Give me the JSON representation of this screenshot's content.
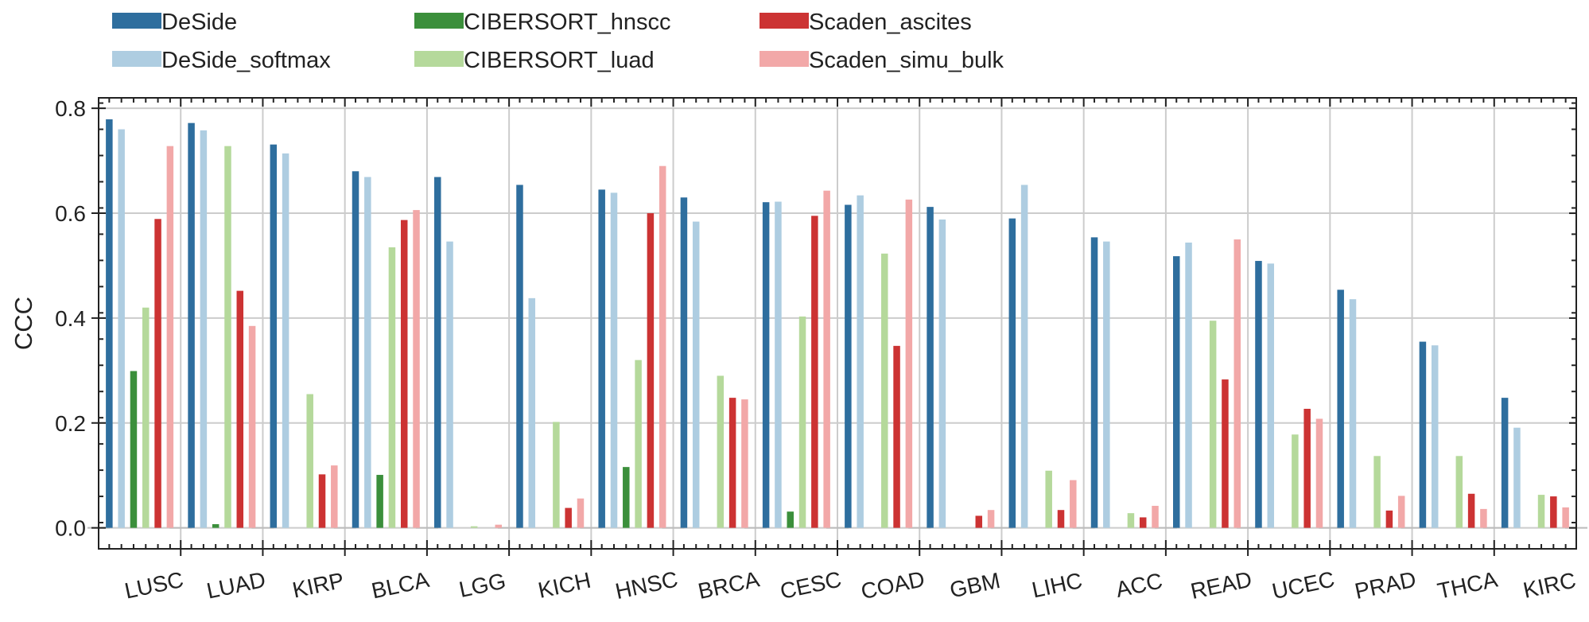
{
  "chart_data": {
    "type": "bar",
    "ylabel": "CCC",
    "xlabel": "",
    "ylim": [
      -0.04,
      0.82
    ],
    "yticks": [
      0.0,
      0.2,
      0.4,
      0.6,
      0.8
    ],
    "ytick_labels": [
      "0.0",
      "0.2",
      "0.4",
      "0.6",
      "0.8"
    ],
    "grid": true,
    "legend_position": "top",
    "categories": [
      "LUSC",
      "LUAD",
      "KIRP",
      "BLCA",
      "LGG",
      "KICH",
      "HNSC",
      "BRCA",
      "CESC",
      "COAD",
      "GBM",
      "LIHC",
      "ACC",
      "READ",
      "UCEC",
      "PRAD",
      "THCA",
      "KIRC"
    ],
    "series": [
      {
        "name": "DeSide",
        "color": "#2e6e9e",
        "values": [
          0.779,
          0.772,
          0.731,
          0.68,
          0.669,
          0.654,
          0.645,
          0.63,
          0.621,
          0.616,
          0.612,
          0.59,
          0.554,
          0.518,
          0.509,
          0.454,
          0.355,
          0.248
        ]
      },
      {
        "name": "DeSide_softmax",
        "color": "#aecde1",
        "values": [
          0.76,
          0.758,
          0.714,
          0.669,
          0.546,
          0.438,
          0.639,
          0.584,
          0.622,
          0.634,
          0.588,
          0.654,
          0.546,
          0.544,
          0.504,
          0.436,
          0.348,
          0.191
        ]
      },
      {
        "name": "CIBERSORT_hnscc",
        "color": "#3b8f3b",
        "values": [
          0.299,
          0.007,
          0.0,
          0.101,
          0.0,
          0.0,
          0.116,
          0.0,
          0.031,
          0.0,
          0.0,
          0.0,
          0.0,
          0.0,
          0.0,
          0.0,
          0.0,
          0.0
        ]
      },
      {
        "name": "CIBERSORT_luad",
        "color": "#b5d99b",
        "values": [
          0.42,
          0.728,
          0.255,
          0.535,
          0.003,
          0.202,
          0.32,
          0.29,
          0.403,
          0.523,
          0.0,
          0.109,
          0.028,
          0.395,
          0.178,
          0.137,
          0.137,
          0.063
        ]
      },
      {
        "name": "Scaden_ascites",
        "color": "#cc3333",
        "values": [
          0.589,
          0.452,
          0.102,
          0.587,
          0.0,
          0.038,
          0.6,
          0.248,
          0.595,
          0.347,
          0.023,
          0.034,
          0.02,
          0.283,
          0.227,
          0.033,
          0.065,
          0.06
        ]
      },
      {
        "name": "Scaden_simu_bulk",
        "color": "#f2a8a8",
        "values": [
          0.728,
          0.385,
          0.119,
          0.606,
          0.006,
          0.056,
          0.69,
          0.245,
          0.643,
          0.626,
          0.034,
          0.091,
          0.042,
          0.55,
          0.208,
          0.061,
          0.036,
          0.039
        ]
      }
    ]
  }
}
